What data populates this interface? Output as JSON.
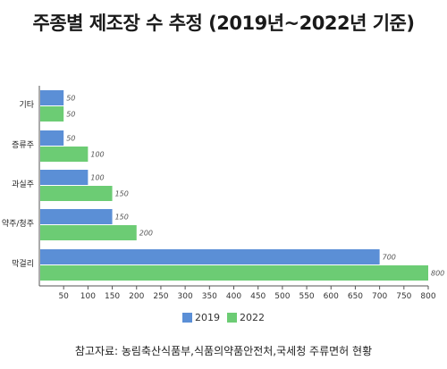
{
  "title": "주종별 제조장 수 추정 (2019년~2022년 기준)",
  "source": "참고자료: 농림축산식품부,식품의약품안전처,국세청 주류면허 현황",
  "colors": {
    "2019": "#5b8fd6",
    "2022": "#6ccc74",
    "axis": "#555555",
    "grid": "#e6e6e6"
  },
  "chart_data": {
    "type": "bar",
    "orientation": "horizontal",
    "categories": [
      "기타",
      "증류주",
      "과실주",
      "약주/청주",
      "막걸리"
    ],
    "series": [
      {
        "name": "2019",
        "values": [
          50,
          50,
          100,
          150,
          700
        ]
      },
      {
        "name": "2022",
        "values": [
          50,
          100,
          150,
          200,
          800
        ]
      }
    ],
    "x_ticks": [
      50,
      100,
      150,
      200,
      250,
      300,
      350,
      400,
      450,
      500,
      550,
      600,
      650,
      700,
      750,
      800
    ],
    "xlim": [
      0,
      800
    ],
    "legend_position": "bottom",
    "grid": false
  }
}
